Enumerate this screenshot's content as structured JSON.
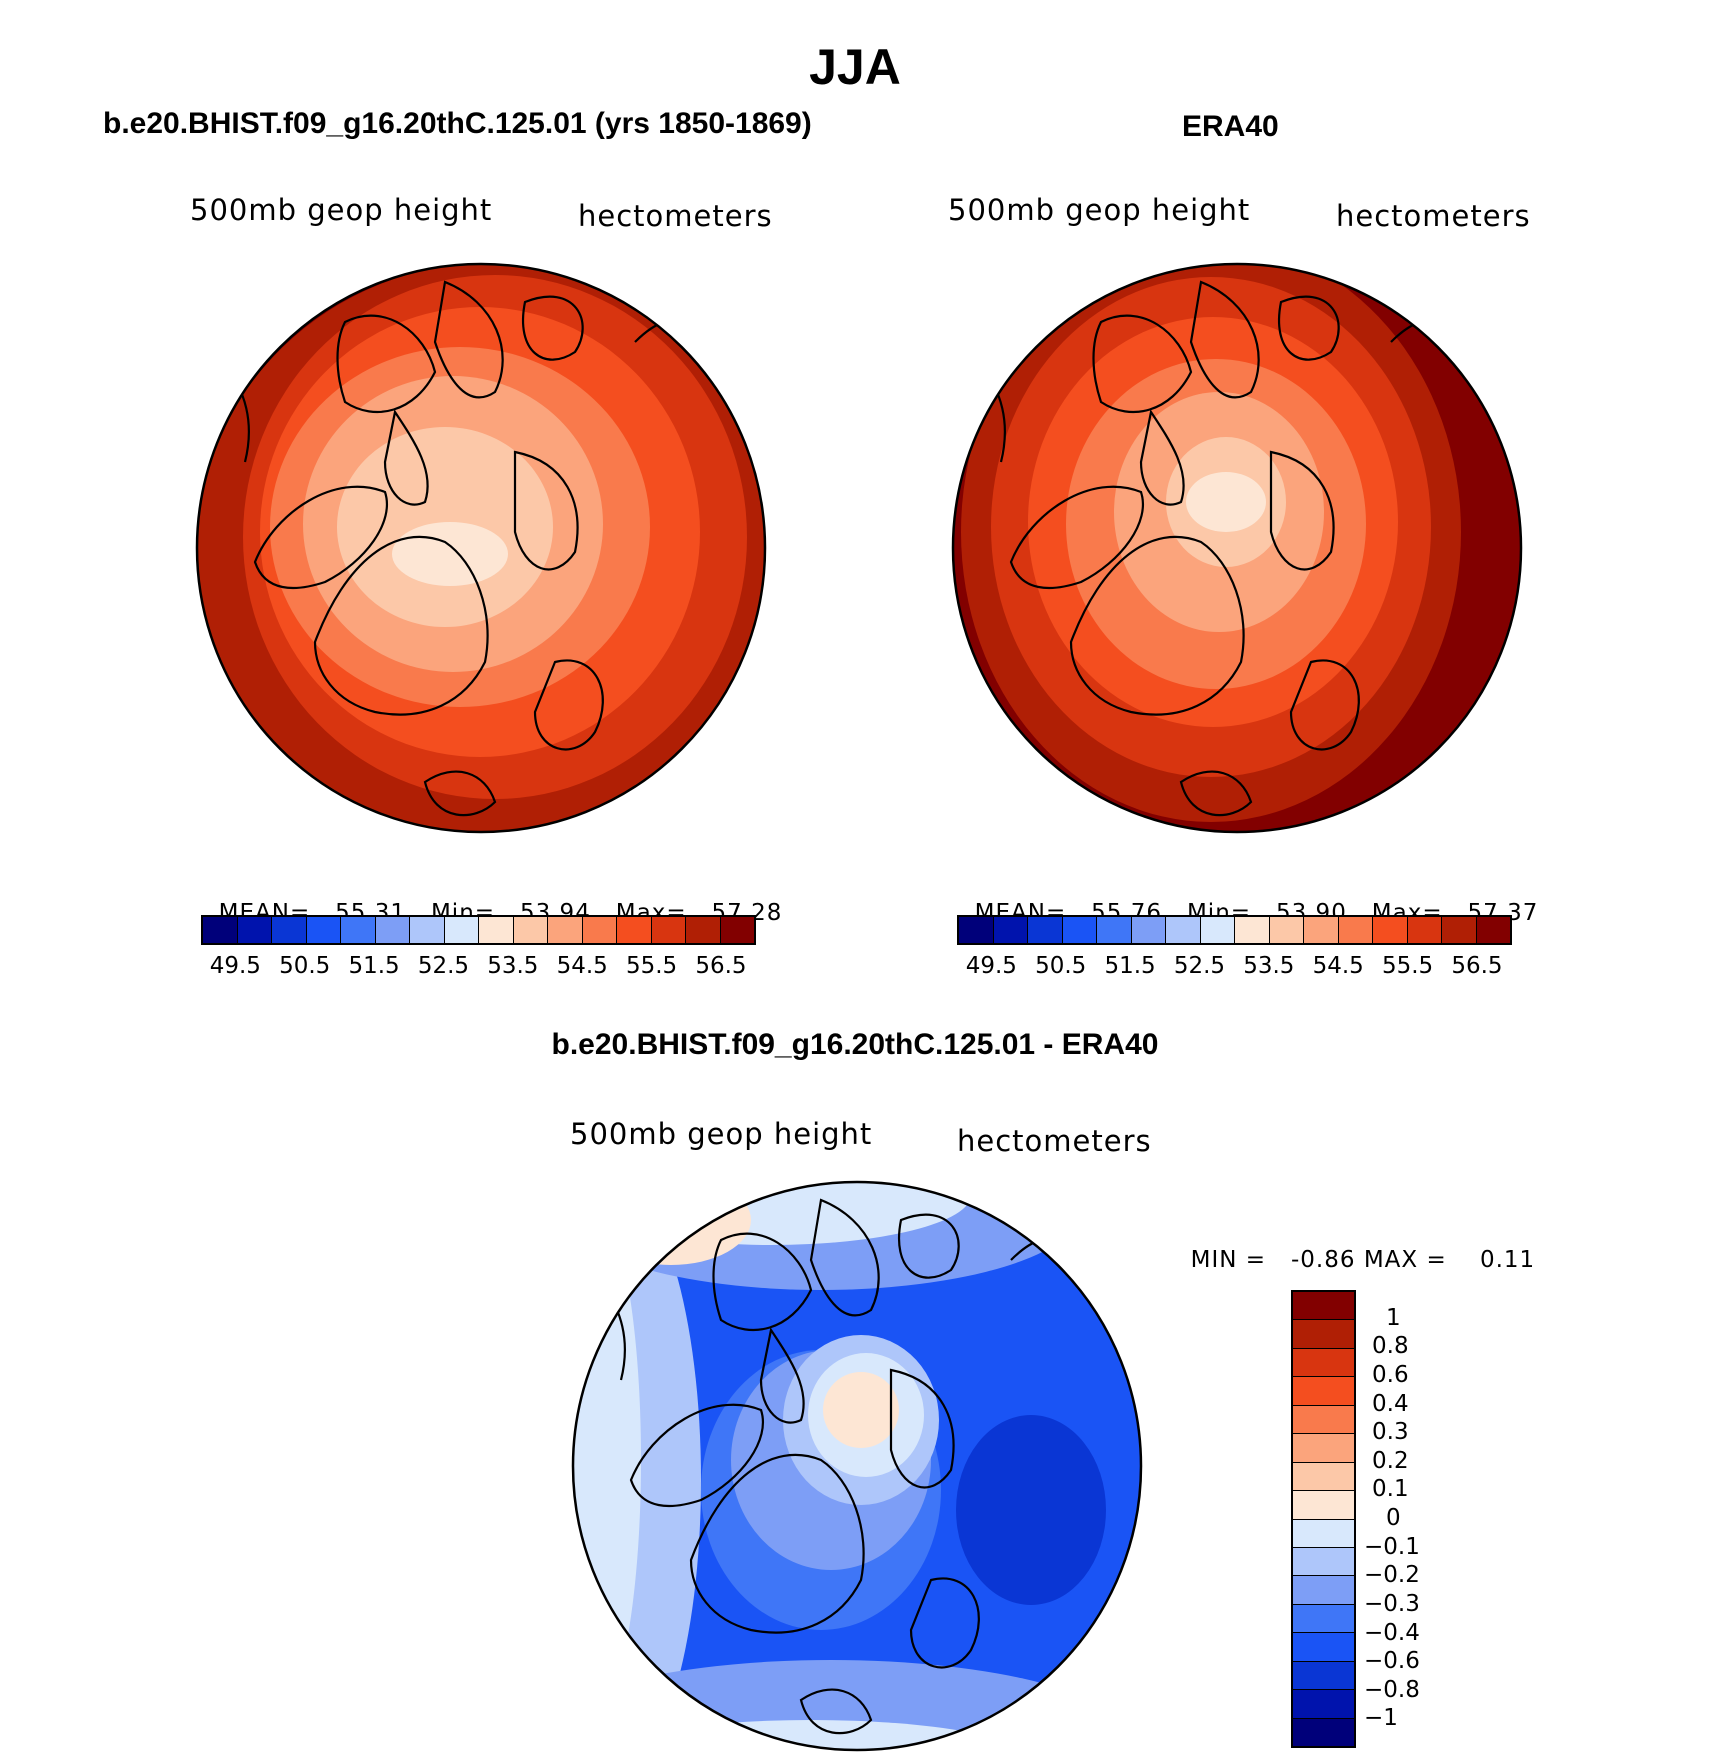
{
  "title": "JJA",
  "chart_data": [
    {
      "type": "heatmap",
      "projection": "north polar stereographic",
      "title": "b.e20.BHIST.f09_g16.20thC.125.01 (yrs 1850-1869)",
      "left_label": "500mb geop height",
      "right_label": "hectometers",
      "stats": {
        "mean_label": "MEAN=",
        "mean": "55.31",
        "min_label": "Min=",
        "min": "53.94",
        "max_label": "Max=",
        "max": "57.28"
      },
      "contour_levels": [
        49.5,
        50,
        50.5,
        51,
        51.5,
        52,
        52.5,
        53,
        53.5,
        54,
        54.5,
        55,
        55.5,
        56,
        56.5
      ],
      "colorbar_ticks": [
        "49.5",
        "50.5",
        "51.5",
        "52.5",
        "53.5",
        "54.5",
        "55.5",
        "56.5"
      ]
    },
    {
      "type": "heatmap",
      "projection": "north polar stereographic",
      "title": "ERA40",
      "left_label": "500mb geop height",
      "right_label": "hectometers",
      "stats": {
        "mean_label": "MEAN=",
        "mean": "55.76",
        "min_label": "Min=",
        "min": "53.90",
        "max_label": "Max=",
        "max": "57.37"
      },
      "contour_levels": [
        49.5,
        50,
        50.5,
        51,
        51.5,
        52,
        52.5,
        53,
        53.5,
        54,
        54.5,
        55,
        55.5,
        56,
        56.5
      ],
      "colorbar_ticks": [
        "49.5",
        "50.5",
        "51.5",
        "52.5",
        "53.5",
        "54.5",
        "55.5",
        "56.5"
      ]
    },
    {
      "type": "heatmap",
      "projection": "north polar stereographic",
      "title": "b.e20.BHIST.f09_g16.20thC.125.01 - ERA40",
      "left_label": "500mb geop height",
      "right_label": "hectometers",
      "stats": {
        "min_label": "MIN =",
        "min": "-0.86",
        "max_label": "MAX =",
        "max": "0.11"
      },
      "contour_levels": [
        -1,
        -0.8,
        -0.6,
        -0.4,
        -0.3,
        -0.2,
        -0.1,
        0,
        0.1,
        0.2,
        0.3,
        0.4,
        0.6,
        0.8,
        1
      ],
      "colorbar_ticks": [
        "1",
        "0.8",
        "0.6",
        "0.4",
        "0.3",
        "0.2",
        "0.1",
        "0",
        "−0.1",
        "−0.2",
        "−0.3",
        "−0.4",
        "−0.6",
        "−0.8",
        "−1"
      ]
    }
  ],
  "palette": [
    "#00007a",
    "#0013ad",
    "#0a36d4",
    "#1a54f5",
    "#3f76f7",
    "#7d9ef6",
    "#aec6fa",
    "#d8e8fc",
    "#fde6d4",
    "#fcc8a8",
    "#fba47c",
    "#f97a4c",
    "#f44e1f",
    "#d83510",
    "#b01f05",
    "#820000"
  ]
}
